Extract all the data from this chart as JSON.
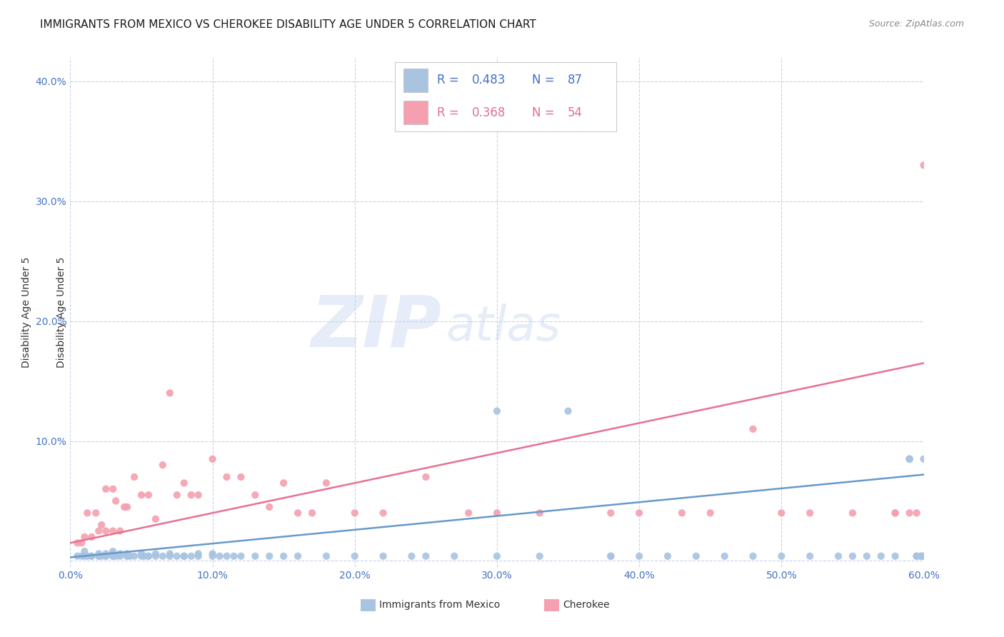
{
  "title": "IMMIGRANTS FROM MEXICO VS CHEROKEE DISABILITY AGE UNDER 5 CORRELATION CHART",
  "source": "Source: ZipAtlas.com",
  "ylabel": "Disability Age Under 5",
  "legend_label_1": "Immigrants from Mexico",
  "legend_label_2": "Cherokee",
  "r1": 0.483,
  "n1": 87,
  "r2": 0.368,
  "n2": 54,
  "color_blue": "#a8c4e0",
  "color_pink": "#f4a0b0",
  "color_blue_text": "#4472c4",
  "color_pink_text": "#e07090",
  "line_color_blue": "#6699cc",
  "line_color_pink": "#e87090",
  "xlim": [
    0.0,
    0.6
  ],
  "ylim": [
    -0.005,
    0.42
  ],
  "xticks": [
    0.0,
    0.1,
    0.2,
    0.3,
    0.4,
    0.5,
    0.6
  ],
  "yticks": [
    0.0,
    0.1,
    0.2,
    0.3,
    0.4
  ],
  "xtick_labels": [
    "0.0%",
    "10.0%",
    "20.0%",
    "30.0%",
    "40.0%",
    "50.0%",
    "60.0%"
  ],
  "ytick_labels_right": [
    "",
    "10.0%",
    "20.0%",
    "30.0%",
    "40.0%"
  ],
  "watermark_zip": "ZIP",
  "watermark_atlas": "atlas",
  "blue_scatter_x": [
    0.005,
    0.008,
    0.01,
    0.01,
    0.012,
    0.015,
    0.015,
    0.02,
    0.02,
    0.02,
    0.022,
    0.025,
    0.025,
    0.025,
    0.03,
    0.03,
    0.03,
    0.03,
    0.03,
    0.032,
    0.035,
    0.035,
    0.04,
    0.04,
    0.04,
    0.042,
    0.045,
    0.05,
    0.05,
    0.052,
    0.055,
    0.055,
    0.06,
    0.06,
    0.065,
    0.07,
    0.07,
    0.075,
    0.08,
    0.08,
    0.085,
    0.09,
    0.09,
    0.1,
    0.1,
    0.105,
    0.11,
    0.115,
    0.12,
    0.13,
    0.14,
    0.15,
    0.16,
    0.18,
    0.2,
    0.22,
    0.24,
    0.25,
    0.27,
    0.3,
    0.3,
    0.33,
    0.35,
    0.38,
    0.38,
    0.4,
    0.42,
    0.44,
    0.46,
    0.48,
    0.5,
    0.52,
    0.54,
    0.55,
    0.56,
    0.57,
    0.58,
    0.59,
    0.59,
    0.59,
    0.595,
    0.595,
    0.598,
    0.598,
    0.6,
    0.6,
    0.6
  ],
  "blue_scatter_y": [
    0.004,
    0.004,
    0.008,
    0.004,
    0.004,
    0.004,
    0.004,
    0.004,
    0.006,
    0.004,
    0.004,
    0.004,
    0.006,
    0.004,
    0.004,
    0.006,
    0.004,
    0.008,
    0.004,
    0.004,
    0.004,
    0.006,
    0.004,
    0.006,
    0.004,
    0.004,
    0.004,
    0.004,
    0.006,
    0.004,
    0.004,
    0.004,
    0.004,
    0.006,
    0.004,
    0.004,
    0.006,
    0.004,
    0.004,
    0.004,
    0.004,
    0.004,
    0.006,
    0.004,
    0.006,
    0.004,
    0.004,
    0.004,
    0.004,
    0.004,
    0.004,
    0.004,
    0.004,
    0.004,
    0.004,
    0.004,
    0.004,
    0.004,
    0.004,
    0.004,
    0.125,
    0.004,
    0.125,
    0.004,
    0.004,
    0.004,
    0.004,
    0.004,
    0.004,
    0.004,
    0.004,
    0.004,
    0.004,
    0.004,
    0.004,
    0.004,
    0.004,
    0.085,
    0.085,
    0.085,
    0.004,
    0.004,
    0.004,
    0.004,
    0.004,
    0.085,
    0.004
  ],
  "pink_scatter_x": [
    0.005,
    0.008,
    0.01,
    0.012,
    0.015,
    0.018,
    0.02,
    0.022,
    0.025,
    0.025,
    0.03,
    0.03,
    0.032,
    0.035,
    0.038,
    0.04,
    0.045,
    0.05,
    0.055,
    0.06,
    0.065,
    0.07,
    0.075,
    0.08,
    0.085,
    0.09,
    0.1,
    0.11,
    0.12,
    0.13,
    0.14,
    0.15,
    0.16,
    0.17,
    0.18,
    0.2,
    0.22,
    0.25,
    0.28,
    0.3,
    0.33,
    0.38,
    0.4,
    0.43,
    0.45,
    0.48,
    0.5,
    0.52,
    0.55,
    0.58,
    0.58,
    0.59,
    0.595,
    0.6
  ],
  "pink_scatter_y": [
    0.015,
    0.015,
    0.02,
    0.04,
    0.02,
    0.04,
    0.025,
    0.03,
    0.025,
    0.06,
    0.025,
    0.06,
    0.05,
    0.025,
    0.045,
    0.045,
    0.07,
    0.055,
    0.055,
    0.035,
    0.08,
    0.14,
    0.055,
    0.065,
    0.055,
    0.055,
    0.085,
    0.07,
    0.07,
    0.055,
    0.045,
    0.065,
    0.04,
    0.04,
    0.065,
    0.04,
    0.04,
    0.07,
    0.04,
    0.04,
    0.04,
    0.04,
    0.04,
    0.04,
    0.04,
    0.11,
    0.04,
    0.04,
    0.04,
    0.04,
    0.04,
    0.04,
    0.04,
    0.33
  ],
  "blue_line_x": [
    0.0,
    0.6
  ],
  "blue_line_y": [
    0.003,
    0.072
  ],
  "pink_line_x": [
    0.0,
    0.6
  ],
  "pink_line_y": [
    0.015,
    0.165
  ],
  "background_color": "#ffffff",
  "grid_color": "#c8d4e8",
  "title_fontsize": 11,
  "axis_label_fontsize": 10,
  "tick_fontsize": 10,
  "source_fontsize": 9,
  "legend_fontsize": 12
}
